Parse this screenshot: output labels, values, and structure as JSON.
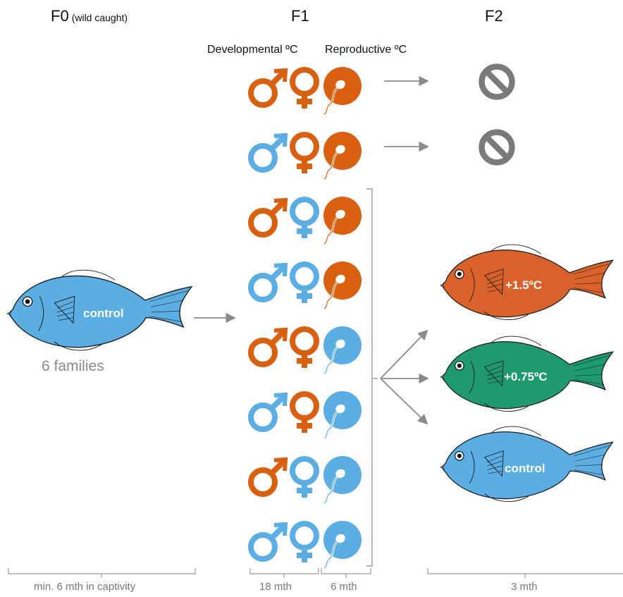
{
  "headings": {
    "f0": "F0",
    "f0_note": "(wild caught)",
    "f1": "F1",
    "f2": "F2",
    "developmental": "Developmental ºC",
    "reproductive": "Reproductive ºC"
  },
  "f0": {
    "fish_label": "control",
    "families": "6 families"
  },
  "f1_rows": [
    {
      "male": "warm",
      "female": "warm",
      "repro": "warm",
      "outcome": "none"
    },
    {
      "male": "control",
      "female": "warm",
      "repro": "warm",
      "outcome": "none"
    },
    {
      "male": "warm",
      "female": "control",
      "repro": "warm",
      "outcome": "offspring"
    },
    {
      "male": "control",
      "female": "control",
      "repro": "warm",
      "outcome": "offspring"
    },
    {
      "male": "warm",
      "female": "warm",
      "repro": "control",
      "outcome": "offspring"
    },
    {
      "male": "control",
      "female": "warm",
      "repro": "control",
      "outcome": "offspring"
    },
    {
      "male": "warm",
      "female": "control",
      "repro": "control",
      "outcome": "offspring"
    },
    {
      "male": "control",
      "female": "control",
      "repro": "control",
      "outcome": "offspring"
    }
  ],
  "f2_fish": [
    {
      "label": "+1.5ºC",
      "color": "#d9622b"
    },
    {
      "label": "+0.75ºC",
      "color": "#1f9a6e"
    },
    {
      "label": "control",
      "color": "#5aaee3"
    }
  ],
  "colors": {
    "warm": "#d9600f",
    "control": "#5aaee3",
    "f0_fish": "#5aaee3",
    "no_symbol": "#7a7a7a",
    "arrow": "#8a8a8a"
  },
  "no_offspring_icon": "no-entry-icon",
  "timeline": {
    "f0": "min. 6 mth in captivity",
    "f1_dev": "18 mth",
    "f1_rep": "6 mth",
    "f2": "3 mth"
  }
}
